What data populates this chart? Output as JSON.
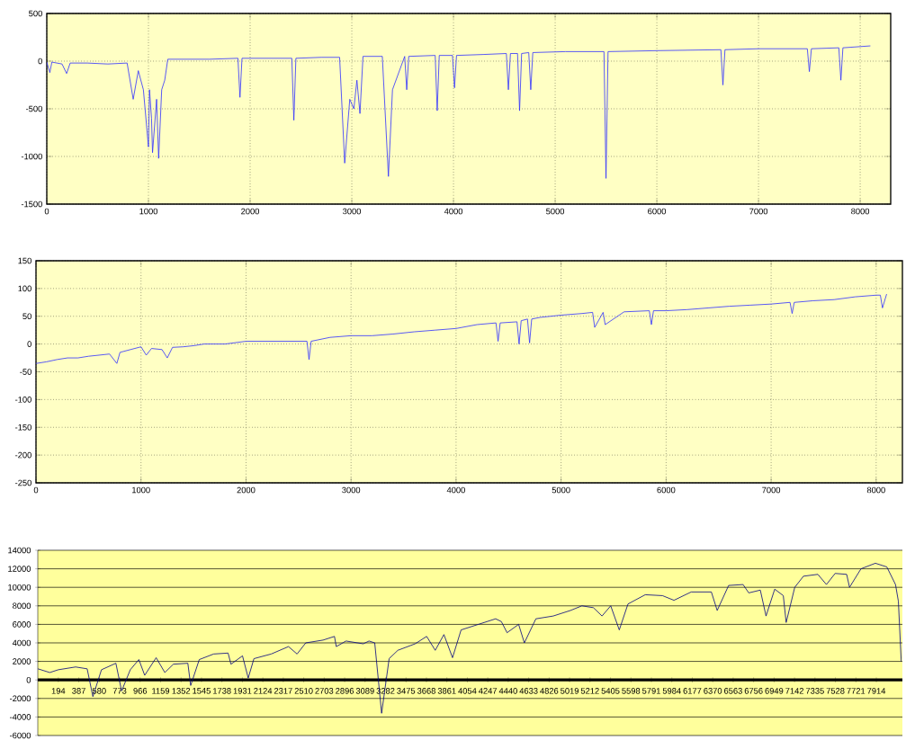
{
  "chart_data": [
    {
      "type": "line",
      "grid": true,
      "x": [
        0,
        30,
        50,
        150,
        195,
        230,
        400,
        600,
        790,
        850,
        900,
        950,
        1000,
        1010,
        1030,
        1040,
        1080,
        1100,
        1130,
        1160,
        1190,
        1600,
        1880,
        1900,
        1920,
        2100,
        2410,
        2430,
        2450,
        2700,
        2880,
        2930,
        2980,
        3020,
        3050,
        3080,
        3110,
        3300,
        3360,
        3400,
        3520,
        3540,
        3560,
        3820,
        3840,
        3860,
        3990,
        4010,
        4030,
        4300,
        4520,
        4540,
        4560,
        4630,
        4650,
        4670,
        4740,
        4760,
        4780,
        5100,
        5480,
        5500,
        5520,
        6000,
        6630,
        6650,
        6670,
        7000,
        7480,
        7500,
        7520,
        7790,
        7810,
        7830,
        8100
      ],
      "series": [
        {
          "color": "#3030ff",
          "values": [
            -10,
            -120,
            -10,
            -30,
            -130,
            -20,
            -20,
            -30,
            -20,
            -400,
            -100,
            -300,
            -900,
            -300,
            -600,
            -960,
            -400,
            -1020,
            -300,
            -200,
            20,
            20,
            30,
            -380,
            30,
            30,
            30,
            -620,
            30,
            40,
            40,
            -1070,
            -400,
            -500,
            -200,
            -550,
            50,
            50,
            -1210,
            -300,
            50,
            -300,
            50,
            60,
            -520,
            60,
            60,
            -280,
            60,
            70,
            80,
            -300,
            80,
            80,
            -520,
            80,
            90,
            -300,
            90,
            100,
            100,
            -1230,
            100,
            110,
            120,
            -250,
            120,
            130,
            130,
            -110,
            130,
            140,
            -200,
            140,
            160
          ]
        }
      ],
      "xlim": [
        0,
        8300
      ],
      "ylim": [
        -1500,
        500
      ],
      "xticks": [
        0,
        1000,
        2000,
        3000,
        4000,
        5000,
        6000,
        7000,
        8000
      ],
      "yticks": [
        -1500,
        -1000,
        -500,
        0,
        500
      ]
    },
    {
      "type": "line",
      "grid": true,
      "x": [
        0,
        100,
        200,
        300,
        400,
        500,
        600,
        700,
        770,
        800,
        900,
        1000,
        1050,
        1100,
        1200,
        1250,
        1300,
        1400,
        1500,
        1600,
        1800,
        2000,
        2580,
        2600,
        2620,
        2800,
        3000,
        3200,
        3400,
        3600,
        3800,
        4000,
        4200,
        4380,
        4400,
        4420,
        4580,
        4600,
        4620,
        4680,
        4700,
        4720,
        4800,
        5000,
        5200,
        5300,
        5320,
        5400,
        5420,
        5600,
        5840,
        5860,
        5880,
        6000,
        6200,
        6400,
        6600,
        6800,
        7000,
        7180,
        7200,
        7220,
        7400,
        7600,
        7800,
        8000,
        8040,
        8060,
        8100
      ],
      "series": [
        {
          "color": "#3030ff",
          "values": [
            -35,
            -32,
            -28,
            -25,
            -25,
            -22,
            -20,
            -18,
            -35,
            -15,
            -10,
            -5,
            -20,
            -8,
            -10,
            -25,
            -6,
            -5,
            -3,
            0,
            0,
            5,
            5,
            -28,
            5,
            12,
            15,
            15,
            18,
            22,
            25,
            28,
            35,
            38,
            5,
            38,
            40,
            0,
            42,
            45,
            2,
            45,
            48,
            52,
            55,
            57,
            30,
            57,
            35,
            58,
            60,
            35,
            60,
            60,
            62,
            65,
            68,
            70,
            72,
            75,
            55,
            75,
            78,
            80,
            85,
            88,
            88,
            65,
            90
          ]
        }
      ],
      "xlim": [
        0,
        8250
      ],
      "ylim": [
        -250,
        150
      ],
      "xticks": [
        0,
        1000,
        2000,
        3000,
        4000,
        5000,
        6000,
        7000,
        8000
      ],
      "yticks": [
        -250,
        -200,
        -150,
        -100,
        -50,
        0,
        50,
        100,
        150
      ]
    },
    {
      "type": "line",
      "grid": "y",
      "x": [
        1,
        113,
        194,
        357,
        466,
        520,
        601,
        737,
        791,
        873,
        954,
        1009,
        1117,
        1199,
        1280,
        1416,
        1443,
        1524,
        1660,
        1796,
        1823,
        1932,
        1986,
        2040,
        2203,
        2366,
        2447,
        2529,
        2692,
        2800,
        2817,
        2909,
        3072,
        3126,
        3180,
        3245,
        3316,
        3398,
        3561,
        3670,
        3751,
        3833,
        3914,
        3995,
        4158,
        4321,
        4375,
        4429,
        4538,
        4592,
        4701,
        4864,
        5027,
        5135,
        5244,
        5325,
        5407,
        5488,
        5570,
        5733,
        5896,
        6004,
        6167,
        6357,
        6412,
        6520,
        6656,
        6710,
        6819,
        6873,
        6955,
        7036,
        7063,
        7144,
        7226,
        7362,
        7443,
        7525,
        7634,
        7661,
        7769,
        7905,
        8013,
        8095,
        8122,
        8149
      ],
      "series": [
        {
          "color": "#000080",
          "values": [
            1200,
            800,
            1100,
            1400,
            1200,
            -1800,
            1100,
            1800,
            -1200,
            1100,
            2200,
            500,
            2400,
            800,
            1700,
            1800,
            -600,
            2200,
            2800,
            2900,
            1700,
            2600,
            200,
            2300,
            2800,
            3600,
            2800,
            4000,
            4300,
            4700,
            3600,
            4200,
            3900,
            4200,
            4000,
            -3600,
            2300,
            3200,
            3900,
            4700,
            3200,
            4900,
            2400,
            5400,
            6000,
            6600,
            6300,
            5100,
            6000,
            4000,
            6600,
            6900,
            7500,
            8000,
            7800,
            6900,
            8000,
            5400,
            8200,
            9200,
            9100,
            8600,
            9500,
            9500,
            7500,
            10200,
            10300,
            9400,
            9700,
            6900,
            9800,
            9100,
            6200,
            10000,
            11200,
            11400,
            10300,
            11500,
            11400,
            10000,
            12000,
            12600,
            12200,
            10300,
            8500,
            2000
          ]
        }
      ],
      "xlim": [
        0,
        8160
      ],
      "ylim": [
        -6000,
        14000
      ],
      "xticks": [
        194,
        387,
        580,
        773,
        966,
        1159,
        1352,
        1545,
        1738,
        1931,
        2124,
        2317,
        2510,
        2703,
        2896,
        3089,
        3282,
        3475,
        3668,
        3861,
        4054,
        4247,
        4440,
        4633,
        4826,
        5019,
        5212,
        5405,
        5598,
        5791,
        5984,
        6177,
        6370,
        6563,
        6756,
        6949,
        7142,
        7335,
        7528,
        7721,
        7914
      ],
      "yticks": [
        -6000,
        -4000,
        -2000,
        0,
        2000,
        4000,
        6000,
        8000,
        10000,
        12000,
        14000
      ]
    }
  ]
}
